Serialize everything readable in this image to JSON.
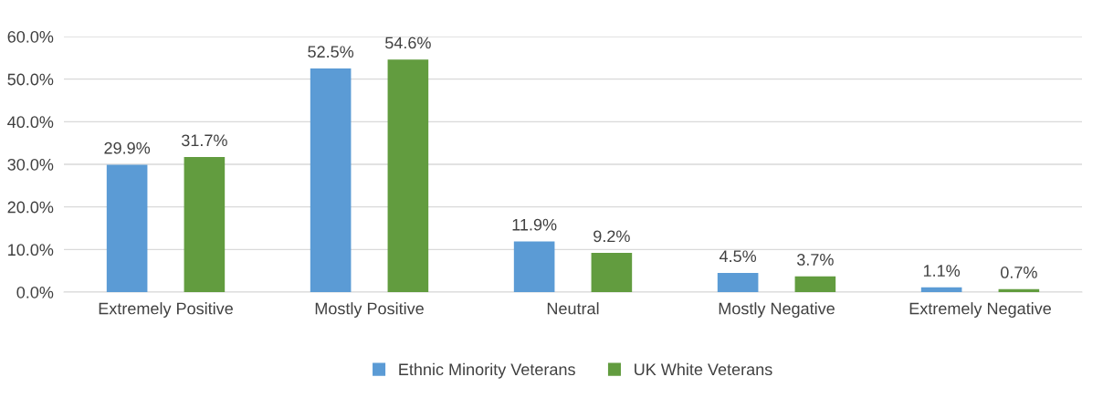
{
  "chart_data": {
    "type": "bar",
    "categories": [
      "Extremely Positive",
      "Mostly Positive",
      "Neutral",
      "Mostly Negative",
      "Extremely Negative"
    ],
    "series": [
      {
        "name": "Ethnic Minority Veterans",
        "color": "#5b9bd5",
        "values": [
          29.9,
          52.5,
          11.9,
          4.5,
          1.1
        ],
        "value_labels": [
          "29.9%",
          "52.5%",
          "11.9%",
          "4.5%",
          "1.1%"
        ]
      },
      {
        "name": "UK White Veterans",
        "color": "#629c3f",
        "values": [
          31.7,
          54.6,
          9.2,
          3.7,
          0.7
        ],
        "value_labels": [
          "31.7%",
          "54.6%",
          "9.2%",
          "3.7%",
          "0.7%"
        ]
      }
    ],
    "ylim": [
      0,
      60
    ],
    "yticks": [
      {
        "value": 0,
        "label": "0.0%"
      },
      {
        "value": 10,
        "label": "10.0%"
      },
      {
        "value": 20,
        "label": "20.0%"
      },
      {
        "value": 30,
        "label": "30.0%"
      },
      {
        "value": 40,
        "label": "40.0%"
      },
      {
        "value": 50,
        "label": "50.0%"
      },
      {
        "value": 60,
        "label": "60.0%"
      }
    ],
    "grid": "y",
    "legend": "bottom"
  }
}
